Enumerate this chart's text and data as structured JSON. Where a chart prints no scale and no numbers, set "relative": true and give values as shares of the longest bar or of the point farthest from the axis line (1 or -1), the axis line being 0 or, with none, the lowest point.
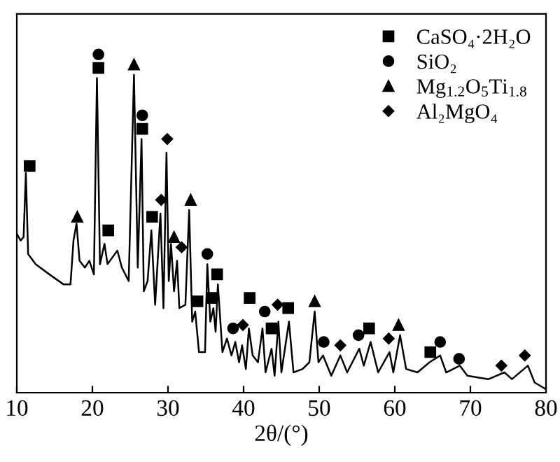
{
  "chart_data": {
    "type": "line",
    "xlabel": "2θ/(°)",
    "relative": true,
    "xlim": [
      10,
      80
    ],
    "xticks": [
      10,
      20,
      30,
      40,
      50,
      60,
      70,
      80
    ],
    "grid": false,
    "legend": "top right",
    "tick_labels": "x",
    "series": [
      {
        "color": "#000000",
        "marker": "none",
        "x": [
          10,
          10.5,
          10.9,
          11.2,
          11.5,
          12.5,
          14.3,
          16.2,
          17.1,
          17.5,
          17.9,
          18.3,
          19,
          19.6,
          20.2,
          20.6,
          21,
          21.6,
          22,
          23.3,
          23.9,
          24.8,
          25.5,
          26,
          26.5,
          26.8,
          27.3,
          27.8,
          28.3,
          29,
          29.4,
          29.8,
          30.1,
          30.4,
          30.8,
          31.2,
          31.5,
          32.3,
          32.8,
          33.2,
          33.6,
          34.1,
          34.9,
          35.2,
          35.6,
          36,
          36.3,
          36.6,
          37.2,
          37.8,
          38.4,
          38.9,
          39.4,
          39.8,
          40.3,
          40.7,
          41.2,
          41.9,
          42.5,
          42.9,
          43.7,
          44.1,
          44.6,
          45,
          46,
          46.6,
          47.8,
          48.7,
          49.4,
          49.9,
          50.5,
          51.6,
          52.8,
          53.7,
          55.3,
          55.9,
          56.8,
          57.8,
          59.3,
          59.8,
          60.7,
          61.5,
          63,
          64.6,
          66,
          66.8,
          68.6,
          69.6,
          72.4,
          74.5,
          75.5,
          77.6,
          78.5,
          80
        ],
        "values": [
          0.47,
          0.45,
          0.46,
          0.65,
          0.41,
          0.38,
          0.35,
          0.32,
          0.32,
          0.45,
          0.5,
          0.39,
          0.37,
          0.39,
          0.35,
          0.93,
          0.38,
          0.44,
          0.38,
          0.42,
          0.37,
          0.33,
          0.94,
          0.37,
          0.75,
          0.3,
          0.33,
          0.48,
          0.26,
          0.53,
          0.25,
          0.71,
          0.33,
          0.44,
          0.3,
          0.39,
          0.25,
          0.26,
          0.54,
          0.21,
          0.24,
          0.12,
          0.12,
          0.38,
          0.21,
          0.25,
          0.18,
          0.32,
          0.12,
          0.16,
          0.11,
          0.15,
          0.09,
          0.14,
          0.07,
          0.19,
          0.11,
          0.09,
          0.19,
          0.06,
          0.13,
          0.05,
          0.21,
          0.06,
          0.21,
          0.06,
          0.07,
          0.09,
          0.24,
          0.09,
          0.11,
          0.05,
          0.11,
          0.06,
          0.13,
          0.08,
          0.15,
          0.06,
          0.12,
          0.06,
          0.17,
          0.07,
          0.06,
          0.09,
          0.11,
          0.06,
          0.08,
          0.05,
          0.04,
          0.06,
          0.04,
          0.08,
          0.03,
          0.01
        ]
      },
      {
        "type": "scatter",
        "name": "CaSO₄·2H₂O",
        "color": "#000000",
        "marker": "square",
        "x": [
          11.7,
          20.8,
          22.1,
          26.6,
          27.9,
          33.9,
          35.8,
          36.5,
          40.8,
          43.7,
          45.9,
          56.6,
          64.7
        ],
        "values": [
          0.67,
          0.96,
          0.48,
          0.78,
          0.52,
          0.27,
          0.28,
          0.35,
          0.28,
          0.19,
          0.25,
          0.19,
          0.12
        ]
      },
      {
        "type": "scatter",
        "name": "SiO₂",
        "color": "#000000",
        "marker": "circle",
        "x": [
          20.8,
          26.6,
          35.2,
          38.6,
          42.8,
          50.6,
          55.2,
          66,
          68.5
        ],
        "values": [
          1.0,
          0.82,
          0.41,
          0.19,
          0.24,
          0.15,
          0.17,
          0.15,
          0.1
        ]
      },
      {
        "type": "scatter",
        "name": "Mg$_{1.2}$O$_{5}$Ti$_{1.8}$",
        "color": "#000000",
        "marker": "triangle",
        "x": [
          18,
          25.5,
          30.8,
          33,
          49.4,
          60.5
        ],
        "values": [
          0.52,
          0.97,
          0.46,
          0.57,
          0.27,
          0.2
        ]
      },
      {
        "type": "scatter",
        "name": "Al₂MgO₄",
        "color": "#000000",
        "marker": "diamond",
        "x": [
          29.1,
          29.9,
          31.8,
          39.9,
          44.5,
          52.8,
          59.2,
          74.1,
          77.2
        ],
        "values": [
          0.57,
          0.75,
          0.43,
          0.2,
          0.26,
          0.14,
          0.16,
          0.08,
          0.11
        ]
      }
    ]
  }
}
